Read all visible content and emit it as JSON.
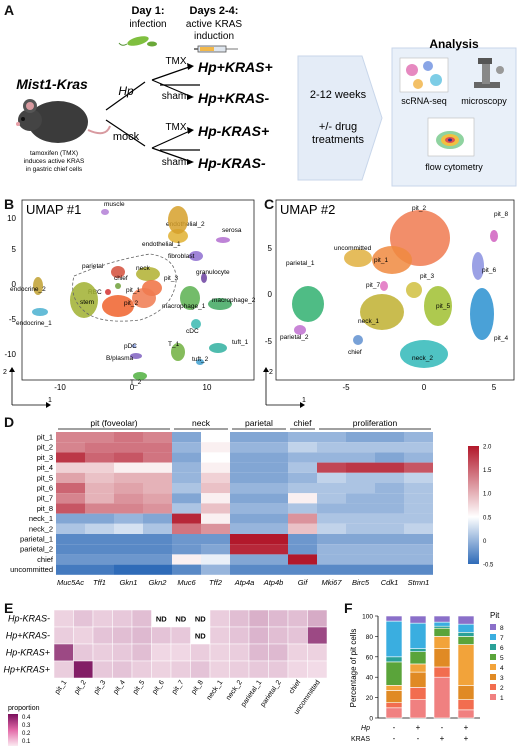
{
  "panels": {
    "A": {
      "letter": "A",
      "day1_title": "Day 1:",
      "day1_sub": "infection",
      "day24_title": "Days 2-4:",
      "day24_sub": "active KRAS",
      "day24_sub2": "induction",
      "mouse_label": "Mist1-Kras",
      "mouse_caption": [
        "tamoxifen (TMX)",
        "induces active KRAS",
        "in gastric chief cells"
      ],
      "hp_label": "Hp",
      "mock_label": "mock",
      "branches": [
        {
          "arm": "TMX",
          "group": "Hp+KRAS+"
        },
        {
          "arm": "sham",
          "group": "Hp+KRAS-"
        },
        {
          "arm": "TMX",
          "group": "Hp-KRAS+"
        },
        {
          "arm": "sham",
          "group": "Hp-KRAS-"
        }
      ],
      "duration": "2-12 weeks",
      "drug_line1": "+/- drug",
      "drug_line2": "treatments",
      "analysis_title": "Analysis",
      "analysis_items": [
        "scRNA-seq",
        "microscopy",
        "flow cytometry"
      ]
    },
    "B": {
      "letter": "B",
      "title": "UMAP #1",
      "xticks": [
        "-10",
        "0",
        "10"
      ],
      "yticks": [
        "10",
        "5",
        "0",
        "-5",
        "-10"
      ],
      "axis_x": "1",
      "axis_y": "2",
      "cluster_labels": [
        "muscle",
        "endothelial_2",
        "endothelial_1",
        "serosa",
        "fibroblast",
        "granulocyte",
        "parietal",
        "neck",
        "chief",
        "pit_3",
        "pit_1",
        "pit_2",
        "RBC",
        "stem",
        "endocrine_2",
        "endocrine_1",
        "macrophage_1",
        "macrophage_2",
        "cDC",
        "pDC",
        "B/plasma",
        "T_1",
        "tuft_1",
        "tuft_2",
        "T_2"
      ]
    },
    "C": {
      "letter": "C",
      "title": "UMAP #2",
      "xticks": [
        "-5",
        "0",
        "5"
      ],
      "yticks": [
        "5",
        "0",
        "-5"
      ],
      "axis_x": "1",
      "axis_y": "2",
      "cluster_labels": [
        "pit_2",
        "pit_8",
        "pit_1",
        "pit_6",
        "parietal_1",
        "uncommitted",
        "pit_3",
        "pit_7",
        "pit_5",
        "neck_1",
        "parietal_2",
        "chief",
        "neck_2",
        "pit_4"
      ]
    },
    "D": {
      "letter": "D",
      "group_headers": [
        "pit (foveolar)",
        "neck",
        "parietal",
        "chief",
        "proliferation"
      ],
      "rows": [
        "pit_1",
        "pit_2",
        "pit_3",
        "pit_4",
        "pit_5",
        "pit_6",
        "pit_7",
        "pit_8",
        "neck_1",
        "neck_2",
        "parietal_1",
        "parietal_2",
        "chief",
        "uncommitted"
      ],
      "cols": [
        "Muc5Ac",
        "Tff1",
        "Gkn1",
        "Gkn2",
        "Muc6",
        "Tff2",
        "Atp4a",
        "Atp4b",
        "Gif",
        "Mki67",
        "Birc5",
        "Cdk1",
        "Stmn1"
      ],
      "colorbar_ticks": [
        "2.0",
        "1.5",
        "1.0",
        "0.5",
        "0",
        "-0.5"
      ],
      "values": [
        [
          1.3,
          1.3,
          1.4,
          1.3,
          -0.1,
          0.5,
          -0.1,
          -0.1,
          0.0,
          0.0,
          -0.1,
          -0.1,
          0.0
        ],
        [
          1.3,
          1.4,
          1.4,
          1.4,
          0.0,
          0.6,
          0.0,
          0.0,
          0.2,
          0.1,
          0.1,
          0.1,
          0.1
        ],
        [
          1.8,
          1.5,
          1.6,
          1.4,
          -0.1,
          0.5,
          -0.1,
          -0.1,
          0.0,
          0.0,
          0.0,
          -0.1,
          0.0
        ],
        [
          0.8,
          0.8,
          0.6,
          0.6,
          0.0,
          0.6,
          -0.1,
          -0.1,
          0.1,
          1.7,
          1.8,
          1.8,
          1.6
        ],
        [
          1.1,
          0.9,
          1.0,
          1.0,
          0.0,
          0.8,
          -0.1,
          -0.1,
          0.0,
          0.2,
          0.1,
          0.1,
          0.2
        ],
        [
          1.5,
          1.0,
          1.1,
          1.0,
          0.1,
          0.9,
          0.0,
          0.0,
          0.1,
          0.1,
          0.1,
          0.0,
          0.1
        ],
        [
          1.3,
          1.0,
          1.2,
          1.1,
          -0.1,
          0.6,
          -0.1,
          -0.1,
          0.6,
          0.1,
          0.0,
          0.0,
          0.1
        ],
        [
          1.6,
          1.3,
          1.3,
          1.2,
          0.1,
          0.9,
          0.0,
          0.0,
          0.1,
          0.0,
          0.0,
          0.0,
          0.1
        ],
        [
          -0.1,
          -0.1,
          0.0,
          -0.1,
          1.9,
          0.6,
          -0.1,
          -0.1,
          1.2,
          0.1,
          0.1,
          0.1,
          0.1
        ],
        [
          0.1,
          0.2,
          0.3,
          0.1,
          1.4,
          1.2,
          0.0,
          0.0,
          0.9,
          0.2,
          0.1,
          0.1,
          0.2
        ],
        [
          -0.3,
          -0.3,
          -0.3,
          -0.3,
          -0.2,
          -0.2,
          2.0,
          2.0,
          -0.2,
          -0.1,
          -0.1,
          -0.1,
          -0.1
        ],
        [
          -0.3,
          -0.3,
          -0.3,
          -0.3,
          -0.2,
          -0.1,
          1.9,
          1.9,
          -0.2,
          0.0,
          0.0,
          0.0,
          0.0
        ],
        [
          -0.2,
          -0.2,
          -0.2,
          -0.2,
          0.6,
          0.4,
          -0.1,
          -0.1,
          2.0,
          0.0,
          0.0,
          0.0,
          0.0
        ],
        [
          -0.4,
          -0.4,
          -0.5,
          -0.5,
          -0.3,
          0.0,
          -0.3,
          -0.3,
          -0.3,
          -0.3,
          -0.3,
          -0.3,
          -0.3
        ]
      ]
    },
    "E": {
      "letter": "E",
      "rows": [
        "Hp-KRAS-",
        "Hp+KRAS-",
        "Hp-KRAS+",
        "Hp+KRAS+"
      ],
      "cols": [
        "pit_1",
        "pit_2",
        "pit_3",
        "pit_4",
        "pit_5",
        "pit_6",
        "pit_7",
        "pit_8",
        "neck_1",
        "neck_2",
        "parietal_1",
        "parietal_2",
        "chief",
        "uncommitted"
      ],
      "nd_label": "ND",
      "legend_title": "proportion",
      "legend_ticks": [
        "0.4",
        "0.3",
        "0.2",
        "0.1"
      ],
      "values": [
        [
          0.05,
          0.08,
          0.06,
          0.07,
          0.09,
          null,
          null,
          null,
          0.06,
          0.09,
          0.12,
          0.1,
          0.09,
          0.13
        ],
        [
          0.06,
          0.05,
          0.08,
          0.09,
          0.1,
          0.08,
          0.07,
          null,
          0.06,
          0.08,
          0.11,
          0.09,
          0.08,
          0.33
        ],
        [
          0.33,
          0.07,
          0.06,
          0.07,
          0.09,
          0.04,
          0.04,
          0.06,
          0.05,
          0.06,
          0.1,
          0.1,
          0.05,
          0.05
        ],
        [
          0.06,
          0.42,
          0.07,
          0.08,
          0.06,
          0.05,
          0.06,
          0.08,
          0.05,
          0.06,
          0.07,
          0.07,
          0.04,
          0.03
        ]
      ]
    },
    "F": {
      "letter": "F",
      "ylabel": "Percentage of pit cells",
      "yticks": [
        "100",
        "80",
        "60",
        "40",
        "20",
        "0"
      ],
      "row_hp": "Hp",
      "row_kras": "KRAS",
      "hp_signs": [
        "-",
        "+",
        "-",
        "+"
      ],
      "kras_signs": [
        "-",
        "-",
        "+",
        "+"
      ],
      "legend_title": "Pit",
      "legend_items": [
        "8",
        "7",
        "6",
        "5",
        "4",
        "3",
        "2",
        "1"
      ]
    }
  },
  "chart_data": [
    {
      "type": "heatmap",
      "rows": [
        "pit_1",
        "pit_2",
        "pit_3",
        "pit_4",
        "pit_5",
        "pit_6",
        "pit_7",
        "pit_8",
        "neck_1",
        "neck_2",
        "parietal_1",
        "parietal_2",
        "chief",
        "uncommitted"
      ],
      "cols": [
        "Muc5Ac",
        "Tff1",
        "Gkn1",
        "Gkn2",
        "Muc6",
        "Tff2",
        "Atp4a",
        "Atp4b",
        "Gif",
        "Mki67",
        "Birc5",
        "Cdk1",
        "Stmn1"
      ],
      "colorbar_range": [
        -0.5,
        2.0
      ]
    },
    {
      "type": "heatmap",
      "rows": [
        "Hp-KRAS-",
        "Hp+KRAS-",
        "Hp-KRAS+",
        "Hp+KRAS+"
      ],
      "colorbar_range": [
        0,
        0.45
      ]
    },
    {
      "type": "bar",
      "stacked": true,
      "ylabel": "Percentage of pit cells",
      "ylim": [
        0,
        100
      ],
      "categories": [
        "Hp- KRAS-",
        "Hp+ KRAS-",
        "Hp- KRAS+",
        "Hp+ KRAS+"
      ],
      "series": [
        {
          "name": "1",
          "values": [
            10,
            18,
            40,
            8
          ],
          "color": "#f08080"
        },
        {
          "name": "2",
          "values": [
            5,
            12,
            10,
            10
          ],
          "color": "#f26d4f"
        },
        {
          "name": "3",
          "values": [
            12,
            15,
            18,
            14
          ],
          "color": "#e08a24"
        },
        {
          "name": "4",
          "values": [
            5,
            8,
            12,
            40
          ],
          "color": "#f2a33a"
        },
        {
          "name": "5",
          "values": [
            23,
            12,
            8,
            8
          ],
          "color": "#5aa43a"
        },
        {
          "name": "6",
          "values": [
            5,
            3,
            2,
            4
          ],
          "color": "#2aa198"
        },
        {
          "name": "7",
          "values": [
            35,
            25,
            4,
            8
          ],
          "color": "#3aaee0"
        },
        {
          "name": "8",
          "values": [
            5,
            7,
            6,
            8
          ],
          "color": "#8a6fc9"
        }
      ]
    }
  ]
}
